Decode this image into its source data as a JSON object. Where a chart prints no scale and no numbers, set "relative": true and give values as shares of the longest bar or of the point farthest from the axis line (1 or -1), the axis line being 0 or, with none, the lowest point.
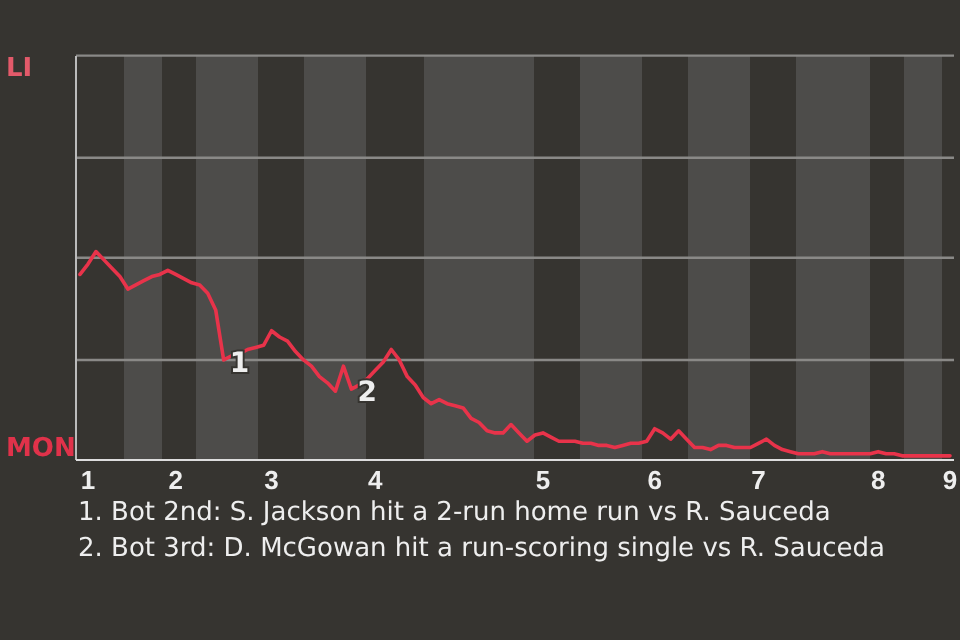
{
  "chart_data": {
    "type": "line",
    "relative": true,
    "categories": [
      null,
      "1",
      null,
      null,
      null,
      null,
      null,
      null,
      null,
      null,
      null,
      null,
      "2",
      null,
      null,
      null,
      null,
      null,
      null,
      null,
      null,
      null,
      null,
      null,
      "3",
      null,
      null,
      null,
      null,
      null,
      null,
      null,
      null,
      null,
      null,
      null,
      null,
      "4",
      null,
      null,
      null,
      null,
      null,
      null,
      null,
      null,
      null,
      null,
      null,
      null,
      null,
      null,
      null,
      null,
      null,
      null,
      null,
      null,
      "5",
      null,
      null,
      null,
      null,
      null,
      null,
      null,
      null,
      null,
      null,
      null,
      null,
      null,
      "6",
      null,
      null,
      null,
      null,
      null,
      null,
      null,
      null,
      null,
      null,
      null,
      null,
      "7",
      null,
      null,
      null,
      null,
      null,
      null,
      null,
      null,
      null,
      null,
      null,
      null,
      null,
      null,
      "8",
      null,
      null,
      null,
      null,
      null,
      null,
      null,
      null,
      "9"
    ],
    "series": [
      {
        "color": "#e8334a",
        "values": [
          0.89,
          0.94,
          1,
          0.96,
          0.92,
          0.88,
          0.82,
          0.84,
          0.86,
          0.88,
          0.89,
          0.91,
          0.89,
          0.87,
          0.85,
          0.84,
          0.8,
          0.72,
          0.48,
          0.5,
          0.51,
          0.53,
          0.54,
          0.55,
          0.62,
          0.59,
          0.57,
          0.52,
          0.48,
          0.45,
          0.4,
          0.37,
          0.33,
          0.45,
          0.34,
          0.36,
          0.39,
          0.43,
          0.47,
          0.53,
          0.48,
          0.4,
          0.36,
          0.3,
          0.27,
          0.29,
          0.27,
          0.26,
          0.25,
          0.2,
          0.18,
          0.14,
          0.13,
          0.13,
          0.17,
          0.13,
          0.09,
          0.12,
          0.13,
          0.11,
          0.09,
          0.09,
          0.09,
          0.08,
          0.08,
          0.07,
          0.07,
          0.06,
          0.07,
          0.08,
          0.08,
          0.09,
          0.15,
          0.13,
          0.1,
          0.14,
          0.1,
          0.06,
          0.06,
          0.05,
          0.07,
          0.07,
          0.06,
          0.06,
          0.06,
          0.08,
          0.1,
          0.07,
          0.05,
          0.04,
          0.03,
          0.03,
          0.03,
          0.04,
          0.03,
          0.03,
          0.03,
          0.03,
          0.03,
          0.03,
          0.04,
          0.03,
          0.03,
          0.02,
          0.02,
          0.02,
          0.02,
          0.02,
          0.02,
          0.02
        ]
      }
    ],
    "ref_lines": [
      {
        "axis": "y",
        "value": 0.48
      },
      {
        "axis": "y",
        "value": 0.97
      },
      {
        "axis": "y",
        "value": 1.45
      },
      {
        "axis": "y",
        "value": 1.94
      }
    ],
    "annotations": [
      "LI",
      "MON",
      {
        "text": "1",
        "y": 0.48
      },
      {
        "text": "2",
        "y": 0.34
      },
      "1. Bot 2nd: S. Jackson hit a 2-run home run vs R. Sauceda",
      "2. Bot 3rd: D. McGowan hit a run-scoring single vs R. Sauceda"
    ]
  }
}
